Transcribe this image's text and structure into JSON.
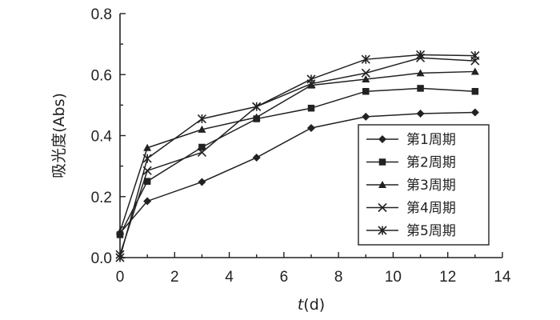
{
  "chart_data": {
    "type": "line",
    "title": "",
    "xlabel_italic": "t",
    "xlabel_rest": "(d)",
    "ylabel": "吸光度(Abs)",
    "xlim": [
      0,
      14
    ],
    "ylim": [
      0,
      0.8
    ],
    "xticks": [
      "0",
      "2",
      "4",
      "6",
      "8",
      "10",
      "12",
      "14"
    ],
    "yticks": [
      "0.0",
      "0.2",
      "0.4",
      "0.6",
      "0.8"
    ],
    "grid": false,
    "legend_position": "bottom-right",
    "x": [
      0,
      1,
      3,
      5,
      7,
      9,
      11,
      13
    ],
    "series": [
      {
        "name": "第1周期",
        "marker": "diamond",
        "values": [
          0.08,
          0.185,
          0.248,
          0.328,
          0.425,
          0.462,
          0.472,
          0.476
        ]
      },
      {
        "name": "第2周期",
        "marker": "square",
        "values": [
          0.075,
          0.25,
          0.362,
          0.455,
          0.49,
          0.545,
          0.555,
          0.545
        ]
      },
      {
        "name": "第3周期",
        "marker": "triangle",
        "values": [
          0.085,
          0.36,
          0.42,
          0.46,
          0.565,
          0.585,
          0.605,
          0.61
        ]
      },
      {
        "name": "第4周期",
        "marker": "x",
        "values": [
          0.01,
          0.285,
          0.345,
          0.495,
          0.57,
          0.605,
          0.655,
          0.645
        ]
      },
      {
        "name": "第5周期",
        "marker": "star",
        "values": [
          0.0,
          0.325,
          0.455,
          0.495,
          0.585,
          0.65,
          0.665,
          0.662
        ]
      }
    ]
  }
}
